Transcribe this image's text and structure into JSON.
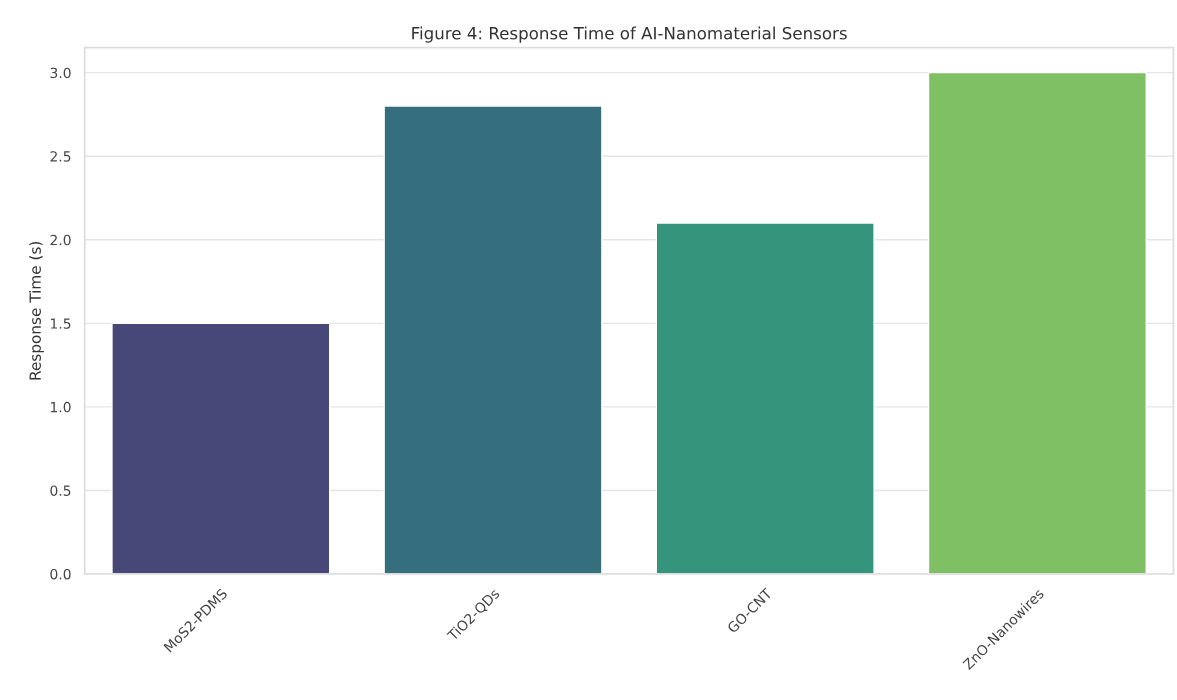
{
  "chart_data": {
    "type": "bar",
    "title": "Figure 4: Response Time of AI-Nanomaterial Sensors",
    "ylabel": "Response Time (s)",
    "categories": [
      "MoS2-PDMS",
      "TiO2-QDs",
      "GO-CNT",
      "ZnO-Nanowires"
    ],
    "values": [
      1.5,
      2.8,
      2.1,
      3.0
    ],
    "colors": [
      "#484878",
      "#356f7e",
      "#34957c",
      "#80c064"
    ],
    "ylim": [
      0,
      3.15
    ],
    "yticks": [
      {
        "value": 0,
        "label": "0.0"
      },
      {
        "value": 0.5,
        "label": "0.5"
      },
      {
        "value": 1,
        "label": "1.0"
      },
      {
        "value": 1.5,
        "label": "1.5"
      },
      {
        "value": 2,
        "label": "2.0"
      },
      {
        "value": 2.5,
        "label": "2.5"
      },
      {
        "value": 3,
        "label": "3.0"
      }
    ],
    "grid": "y"
  }
}
